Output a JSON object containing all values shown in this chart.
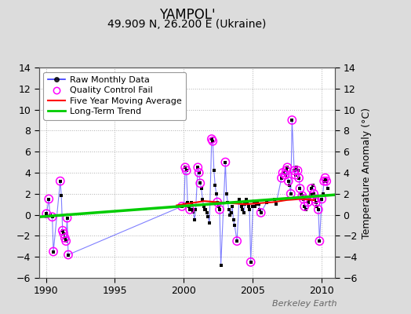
{
  "title": "YAMPOL'",
  "subtitle": "49.909 N, 26.200 E (Ukraine)",
  "ylabel_right": "Temperature Anomaly (°C)",
  "watermark": "Berkeley Earth",
  "xlim": [
    1989.5,
    2011.0
  ],
  "ylim": [
    -6,
    14
  ],
  "yticks": [
    -6,
    -4,
    -2,
    0,
    2,
    4,
    6,
    8,
    10,
    12,
    14
  ],
  "xticks": [
    1990,
    1995,
    2000,
    2005,
    2010
  ],
  "bg_color": "#dcdcdc",
  "plot_bg_color": "#ffffff",
  "grid_color": "#b0b0b0",
  "raw_x": [
    1990.04,
    1990.21,
    1990.29,
    1990.46,
    1990.54,
    1991.04,
    1991.12,
    1991.21,
    1991.29,
    1991.38,
    1991.46,
    1991.54,
    1991.62,
    1999.88,
    2000.04,
    2000.12,
    2000.21,
    2000.29,
    2000.38,
    2000.46,
    2000.54,
    2000.62,
    2000.71,
    2000.79,
    2000.88,
    2001.04,
    2001.12,
    2001.21,
    2001.29,
    2001.38,
    2001.46,
    2001.54,
    2001.62,
    2001.71,
    2001.79,
    2001.88,
    2002.04,
    2002.12,
    2002.21,
    2002.29,
    2002.38,
    2002.46,
    2002.54,
    2002.62,
    2002.71,
    2003.04,
    2003.12,
    2003.21,
    2003.29,
    2003.38,
    2003.46,
    2003.54,
    2003.62,
    2003.71,
    2003.88,
    2004.04,
    2004.12,
    2004.21,
    2004.29,
    2004.38,
    2004.46,
    2004.54,
    2004.62,
    2004.71,
    2004.79,
    2004.88,
    2005.04,
    2005.12,
    2005.21,
    2005.29,
    2005.38,
    2005.46,
    2005.54,
    2005.62,
    2006.04,
    2006.62,
    2006.71,
    2007.12,
    2007.21,
    2007.38,
    2007.46,
    2007.54,
    2007.62,
    2007.71,
    2007.79,
    2007.88,
    2008.04,
    2008.12,
    2008.21,
    2008.29,
    2008.38,
    2008.46,
    2008.54,
    2008.62,
    2008.71,
    2008.79,
    2008.88,
    2009.04,
    2009.12,
    2009.21,
    2009.29,
    2009.38,
    2009.46,
    2009.54,
    2009.62,
    2009.71,
    2009.79,
    2009.88,
    2010.04,
    2010.12,
    2010.21,
    2010.29,
    2010.38,
    2010.46
  ],
  "raw_y": [
    0.1,
    1.5,
    0.0,
    -0.2,
    -3.5,
    3.2,
    1.8,
    -1.5,
    -1.8,
    -2.2,
    -2.5,
    -0.3,
    -3.8,
    0.8,
    1.0,
    4.5,
    4.2,
    1.2,
    0.8,
    0.5,
    1.2,
    0.5,
    0.3,
    -0.5,
    0.5,
    4.5,
    4.0,
    3.0,
    2.5,
    1.5,
    0.8,
    0.5,
    0.5,
    0.2,
    -0.2,
    -0.8,
    7.2,
    7.0,
    4.2,
    2.8,
    2.0,
    1.2,
    0.8,
    0.5,
    -4.8,
    5.0,
    2.0,
    1.2,
    0.5,
    0.0,
    0.2,
    0.8,
    -0.5,
    -1.0,
    -2.5,
    1.5,
    1.2,
    0.8,
    0.5,
    0.2,
    1.0,
    1.5,
    1.2,
    0.8,
    0.5,
    -4.5,
    0.8,
    1.2,
    0.8,
    1.0,
    1.2,
    1.0,
    0.5,
    0.2,
    1.2,
    1.5,
    1.0,
    3.5,
    4.0,
    3.8,
    4.2,
    4.5,
    3.2,
    2.8,
    2.0,
    9.0,
    4.2,
    3.8,
    4.5,
    4.2,
    3.5,
    2.5,
    2.0,
    1.8,
    1.5,
    0.8,
    0.5,
    1.2,
    1.5,
    2.0,
    2.5,
    2.8,
    2.0,
    1.5,
    1.2,
    0.8,
    0.5,
    -2.5,
    1.5,
    2.0,
    3.2,
    3.5,
    3.2,
    2.5
  ],
  "qc_fail_x": [
    1990.04,
    1990.21,
    1990.46,
    1990.54,
    1991.04,
    1991.21,
    1991.29,
    1991.38,
    1991.46,
    1991.54,
    1991.62,
    1999.88,
    2000.12,
    2000.21,
    2000.46,
    2001.04,
    2001.12,
    2001.21,
    2002.04,
    2002.12,
    2002.46,
    2002.62,
    2003.04,
    2003.88,
    2004.88,
    2005.62,
    2007.12,
    2007.21,
    2007.38,
    2007.46,
    2007.54,
    2007.62,
    2007.79,
    2007.88,
    2008.04,
    2008.12,
    2008.29,
    2008.38,
    2008.46,
    2008.62,
    2008.71,
    2008.79,
    2009.04,
    2009.29,
    2009.46,
    2009.54,
    2009.62,
    2009.79,
    2009.88,
    2010.04,
    2010.21,
    2010.29,
    2010.38
  ],
  "qc_fail_y": [
    0.1,
    1.5,
    -0.2,
    -3.5,
    3.2,
    -1.5,
    -1.8,
    -2.2,
    -2.5,
    -0.3,
    -3.8,
    0.8,
    4.5,
    4.2,
    0.5,
    4.5,
    4.0,
    3.0,
    7.2,
    7.0,
    1.2,
    0.5,
    5.0,
    -2.5,
    -4.5,
    0.2,
    3.5,
    4.0,
    3.8,
    4.2,
    4.5,
    3.2,
    2.0,
    9.0,
    4.2,
    3.8,
    4.2,
    3.5,
    2.5,
    1.8,
    1.5,
    0.8,
    1.2,
    2.5,
    2.0,
    1.5,
    1.2,
    0.5,
    -2.5,
    1.5,
    3.2,
    3.5,
    3.2
  ],
  "moving_avg_x": [
    1999.5,
    2000.5,
    2001.5,
    2002.5,
    2003.5,
    2004.5,
    2005.5,
    2006.5,
    2007.5,
    2008.5,
    2009.5
  ],
  "moving_avg_y": [
    0.9,
    1.1,
    1.3,
    1.2,
    1.1,
    1.0,
    1.1,
    1.2,
    1.4,
    1.5,
    1.4
  ],
  "trend_x": [
    1989.5,
    2011.0
  ],
  "trend_y": [
    -0.2,
    1.9
  ],
  "line_color": "#0000ff",
  "line_alpha": 0.5,
  "dot_color": "#000000",
  "qc_color": "#ff00ff",
  "moving_avg_color": "#ff0000",
  "trend_color": "#00cc00",
  "title_fontsize": 12,
  "subtitle_fontsize": 10,
  "tick_fontsize": 9,
  "legend_fontsize": 8,
  "watermark_fontsize": 8
}
